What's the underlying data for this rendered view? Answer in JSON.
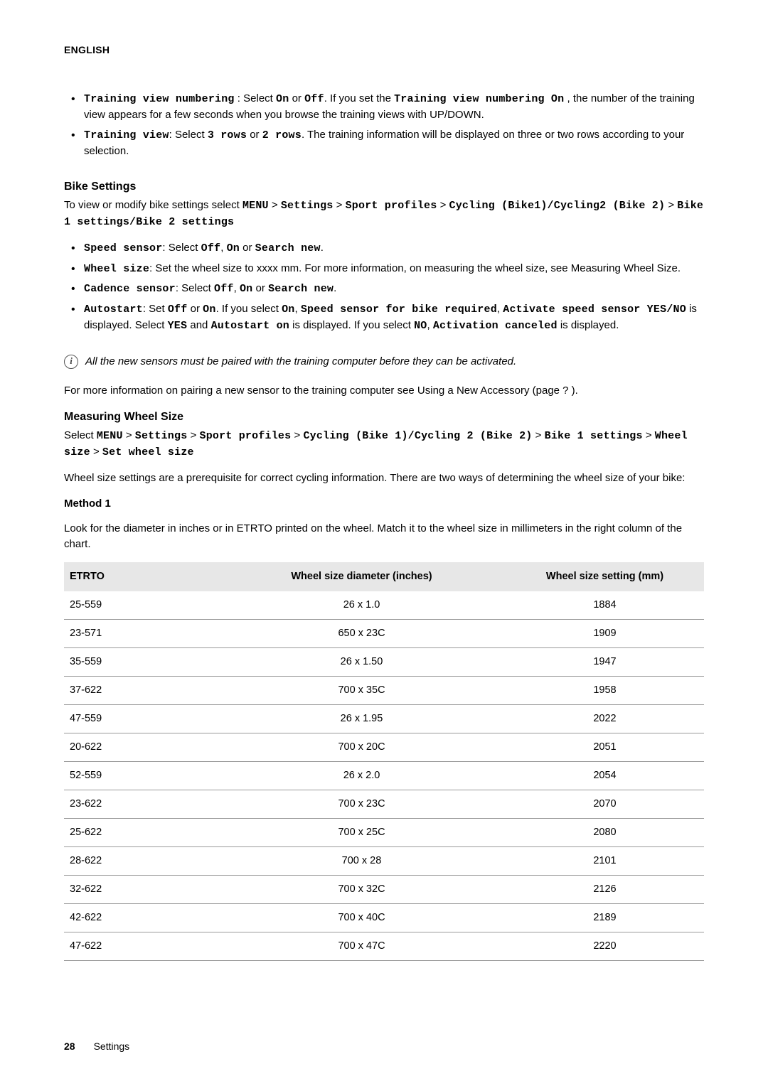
{
  "header": {
    "language": "ENGLISH"
  },
  "intro_bullets": [
    {
      "lead": "Training view numbering",
      "sep": " : Select ",
      "opt1": "On",
      "or": " or ",
      "opt2": "Off",
      "mid": ". If you set the ",
      "lead2": "Training view numbering On",
      "tail": " , the number of the training view appears for a few seconds when you browse the training views with UP/DOWN."
    },
    {
      "lead": "Training view",
      "sep": ": Select ",
      "opt1": "3 rows",
      "or": " or ",
      "opt2": "2 rows",
      "tail": ". The training information will be displayed on three or two rows according to your selection."
    }
  ],
  "bike": {
    "title": "Bike Settings",
    "para_pre": "To view or modify bike settings select ",
    "path1": "MENU",
    "gt": " > ",
    "path2": "Settings",
    "path3": "Sport profiles",
    "path4": "Cycling (Bike1)/Cycling2 (Bike 2)",
    "path5": "Bike 1 settings/Bike 2 settings",
    "bullets": {
      "speed": {
        "lead": "Speed sensor",
        "sep": ": Select ",
        "o1": "Off",
        "c": ", ",
        "o2": "On",
        "or": " or ",
        "o3": "Search new",
        "end": "."
      },
      "wheel": {
        "lead": "Wheel size",
        "sep": ": Set the wheel size to xxxx mm. For more information, on measuring the wheel size, see Measuring Wheel Size."
      },
      "cadence": {
        "lead": "Cadence sensor",
        "sep": ": Select ",
        "o1": "Off",
        "c": ", ",
        "o2": "On",
        "or": " or ",
        "o3": "Search new",
        "end": "."
      },
      "autostart": {
        "lead": "Autostart",
        "sep": ": Set ",
        "o1": "Off",
        "or": " or ",
        "o2": "On",
        "mid1": ". If you select ",
        "on2": "On",
        "c": ", ",
        "msg1": "Speed sensor for bike required",
        "c2": ", ",
        "msg2": "Activate speed sensor YES/NO",
        "mid2": " is displayed. Select ",
        "yes": "YES",
        "and": " and ",
        "msg3": "Autostart on",
        "mid3": " is displayed. If you select ",
        "no": "NO",
        "c3": ", ",
        "msg4": "Activation canceled",
        "mid4": " is displayed."
      }
    }
  },
  "info_note": "All the new sensors must be paired with the training computer before they can be activated.",
  "pairing_para": "For more information on pairing a new sensor to the training computer see Using a New Accessory (page ? ).",
  "mws": {
    "title": "Measuring Wheel Size",
    "select": "Select ",
    "p1": "MENU",
    "gt": " > ",
    "p2": "Settings",
    "p3": "Sport profiles",
    "p4": "Cycling (Bike 1)/Cycling 2 (Bike 2)",
    "p5": "Bike 1 settings",
    "p6": "Wheel size",
    "p7": "Set wheel size",
    "desc": "Wheel size settings are a prerequisite for correct cycling information. There are two ways of determining the wheel size of your bike:"
  },
  "method": {
    "title": "Method 1",
    "desc": "Look for the diameter in inches or in ETRTO printed on the wheel. Match it to the wheel size in millimeters in the right column of the chart."
  },
  "table": {
    "headers": {
      "c1": "ETRTO",
      "c2": "Wheel size diameter (inches)",
      "c3": "Wheel size setting (mm)"
    },
    "rows": [
      {
        "etrto": "25-559",
        "dia": "26 x 1.0",
        "mm": "1884"
      },
      {
        "etrto": "23-571",
        "dia": "650 x 23C",
        "mm": "1909"
      },
      {
        "etrto": "35-559",
        "dia": "26 x 1.50",
        "mm": "1947"
      },
      {
        "etrto": "37-622",
        "dia": "700 x 35C",
        "mm": "1958"
      },
      {
        "etrto": "47-559",
        "dia": "26 x 1.95",
        "mm": "2022"
      },
      {
        "etrto": "20-622",
        "dia": "700 x 20C",
        "mm": "2051"
      },
      {
        "etrto": "52-559",
        "dia": "26 x 2.0",
        "mm": "2054"
      },
      {
        "etrto": "23-622",
        "dia": "700 x 23C",
        "mm": "2070"
      },
      {
        "etrto": "25-622",
        "dia": "700 x 25C",
        "mm": "2080"
      },
      {
        "etrto": "28-622",
        "dia": "700 x 28",
        "mm": "2101"
      },
      {
        "etrto": "32-622",
        "dia": "700 x 32C",
        "mm": "2126"
      },
      {
        "etrto": "42-622",
        "dia": "700 x 40C",
        "mm": "2189"
      },
      {
        "etrto": "47-622",
        "dia": "700 x 47C",
        "mm": "2220"
      }
    ]
  },
  "footer": {
    "page": "28",
    "section": "Settings"
  }
}
